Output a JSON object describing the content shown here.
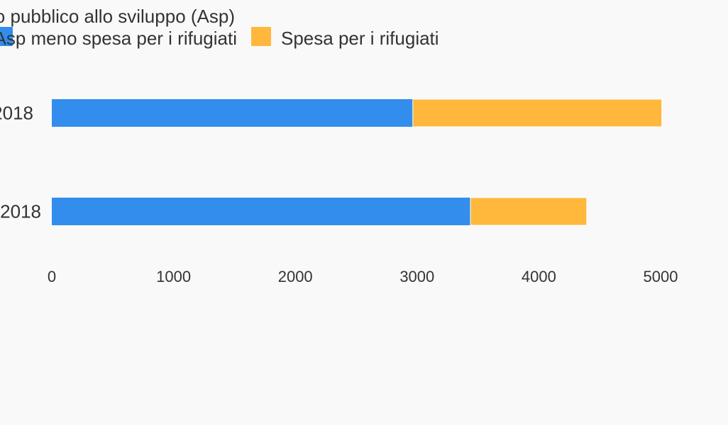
{
  "chart_data": {
    "type": "bar",
    "orientation": "horizontal",
    "stacked": true,
    "legend_title": "Aiuto pubblico allo sviluppo (Asp)",
    "categories": [
      "2018",
      "2018"
    ],
    "series": [
      {
        "name": "Asp meno spesa per i rifugiati",
        "color": "#338ded",
        "values": [
          2965,
          3438
        ]
      },
      {
        "name": "Spesa per i rifugiati",
        "color": "#ffb83b",
        "values": [
          2045,
          955
        ]
      }
    ],
    "xlim": [
      0,
      5000
    ],
    "xticks": [
      "0",
      "1000",
      "2000",
      "3000",
      "4000",
      "5000"
    ],
    "grid": false,
    "legend_position": "top"
  }
}
